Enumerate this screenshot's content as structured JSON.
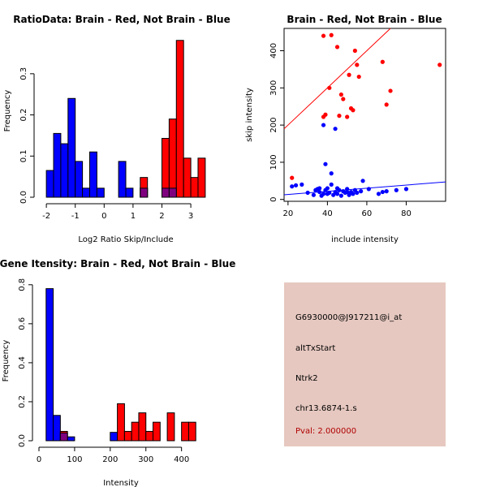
{
  "colors": {
    "brain": "#ff0000",
    "not_brain": "#0000ff",
    "overlap": "#7f007f",
    "panel_bg": "#e6c8c0",
    "pval": "#b00000"
  },
  "chart_data": [
    {
      "id": "ratio-hist",
      "type": "bar",
      "title": "RatioData: Brain - Red, Not Brain - Blue",
      "xlabel": "Log2 Ratio Skip/Include",
      "ylabel": "Frequency",
      "xlim": [
        -2.2,
        3.7
      ],
      "ylim": [
        0,
        0.42
      ],
      "xticks": [
        -2,
        -1,
        0,
        1,
        2,
        3
      ],
      "yticks": [
        0.0,
        0.1,
        0.2,
        0.3
      ],
      "bin_width": 0.25,
      "series": [
        {
          "name": "Not Brain",
          "color": "#0000ff",
          "bins": [
            {
              "x0": -2.0,
              "v": 0.065
            },
            {
              "x0": -1.75,
              "v": 0.155
            },
            {
              "x0": -1.5,
              "v": 0.13
            },
            {
              "x0": -1.25,
              "v": 0.24
            },
            {
              "x0": -1.0,
              "v": 0.087
            },
            {
              "x0": -0.75,
              "v": 0.022
            },
            {
              "x0": -0.5,
              "v": 0.11
            },
            {
              "x0": -0.25,
              "v": 0.022
            },
            {
              "x0": 0.5,
              "v": 0.087
            },
            {
              "x0": 0.75,
              "v": 0.022
            },
            {
              "x0": 1.25,
              "v": 0.022
            },
            {
              "x0": 2.0,
              "v": 0.022
            },
            {
              "x0": 2.25,
              "v": 0.022
            }
          ]
        },
        {
          "name": "Brain",
          "color": "#ff0000",
          "bins": [
            {
              "x0": 1.25,
              "v": 0.048
            },
            {
              "x0": 2.0,
              "v": 0.143
            },
            {
              "x0": 2.25,
              "v": 0.19
            },
            {
              "x0": 2.5,
              "v": 0.381
            },
            {
              "x0": 2.75,
              "v": 0.095
            },
            {
              "x0": 3.0,
              "v": 0.048
            },
            {
              "x0": 3.25,
              "v": 0.095
            }
          ]
        }
      ]
    },
    {
      "id": "intensity-scatter",
      "type": "scatter",
      "title": "Brain - Red, Not Brain - Blue",
      "xlabel": "include intensity",
      "ylabel": "skip intensity",
      "xlim": [
        18,
        100
      ],
      "ylim": [
        -5,
        460
      ],
      "xticks": [
        20,
        40,
        60,
        80
      ],
      "yticks": [
        0,
        100,
        200,
        300,
        400
      ],
      "series": [
        {
          "name": "Brain",
          "color": "#ff0000",
          "points": [
            [
              22,
              58
            ],
            [
              38,
              440
            ],
            [
              42,
              442
            ],
            [
              45,
              410
            ],
            [
              52,
              245
            ],
            [
              54,
              400
            ],
            [
              55,
              362
            ],
            [
              56,
              330
            ],
            [
              47,
              282
            ],
            [
              48,
              270
            ],
            [
              46,
              225
            ],
            [
              50,
              222
            ],
            [
              51,
              335
            ],
            [
              53,
              240
            ],
            [
              39,
              228
            ],
            [
              41,
              300
            ],
            [
              68,
              370
            ],
            [
              70,
              255
            ],
            [
              72,
              292
            ],
            [
              97,
              362
            ],
            [
              38,
              222
            ]
          ],
          "fit": {
            "intercept": 100,
            "slope": 5.0
          }
        },
        {
          "name": "Not Brain",
          "color": "#0000ff",
          "points": [
            [
              22,
              35
            ],
            [
              24,
              38
            ],
            [
              27,
              40
            ],
            [
              30,
              18
            ],
            [
              33,
              12
            ],
            [
              35,
              28
            ],
            [
              36,
              20
            ],
            [
              37,
              10
            ],
            [
              38,
              15
            ],
            [
              39,
              25
            ],
            [
              40,
              30
            ],
            [
              41,
              18
            ],
            [
              42,
              40
            ],
            [
              43,
              12
            ],
            [
              44,
              20
            ],
            [
              45,
              15
            ],
            [
              46,
              25
            ],
            [
              47,
              10
            ],
            [
              48,
              22
            ],
            [
              49,
              18
            ],
            [
              50,
              28
            ],
            [
              51,
              12
            ],
            [
              52,
              20
            ],
            [
              53,
              15
            ],
            [
              54,
              25
            ],
            [
              55,
              18
            ],
            [
              57,
              22
            ],
            [
              58,
              50
            ],
            [
              61,
              28
            ],
            [
              66,
              15
            ],
            [
              68,
              20
            ],
            [
              70,
              22
            ],
            [
              75,
              25
            ],
            [
              80,
              28
            ],
            [
              38,
              200
            ],
            [
              44,
              190
            ],
            [
              39,
              95
            ],
            [
              42,
              70
            ],
            [
              34,
              25
            ],
            [
              36,
              30
            ],
            [
              40,
              15
            ],
            [
              45,
              30
            ],
            [
              50,
              20
            ]
          ],
          "fit": {
            "intercept": 5,
            "slope": 0.42
          }
        }
      ]
    },
    {
      "id": "gene-intensity-hist",
      "type": "bar",
      "title": "Gene Itensity: Brain - Red, Not Brain - Blue",
      "xlabel": "Intensity",
      "ylabel": "Frequency",
      "xlim": [
        0,
        460
      ],
      "ylim": [
        0,
        0.82
      ],
      "xticks": [
        0,
        100,
        200,
        300,
        400
      ],
      "yticks": [
        0.0,
        0.2,
        0.4,
        0.6,
        0.8
      ],
      "bin_width": 20,
      "series": [
        {
          "name": "Not Brain",
          "color": "#0000ff",
          "bins": [
            {
              "x0": 20,
              "v": 0.78
            },
            {
              "x0": 40,
              "v": 0.13
            },
            {
              "x0": 60,
              "v": 0.04
            },
            {
              "x0": 80,
              "v": 0.02
            },
            {
              "x0": 200,
              "v": 0.043
            }
          ]
        },
        {
          "name": "Brain",
          "color": "#ff0000",
          "bins": [
            {
              "x0": 60,
              "v": 0.048
            },
            {
              "x0": 220,
              "v": 0.19
            },
            {
              "x0": 240,
              "v": 0.048
            },
            {
              "x0": 260,
              "v": 0.095
            },
            {
              "x0": 280,
              "v": 0.143
            },
            {
              "x0": 300,
              "v": 0.048
            },
            {
              "x0": 320,
              "v": 0.095
            },
            {
              "x0": 360,
              "v": 0.143
            },
            {
              "x0": 400,
              "v": 0.095
            },
            {
              "x0": 420,
              "v": 0.095
            }
          ]
        }
      ]
    }
  ],
  "info": {
    "probe_id": "G6930000@J917211@i_at",
    "event_type": "altTxStart",
    "gene": "Ntrk2",
    "location": "chr13.6874-1.s",
    "pval": "Pval: 2.000000"
  }
}
